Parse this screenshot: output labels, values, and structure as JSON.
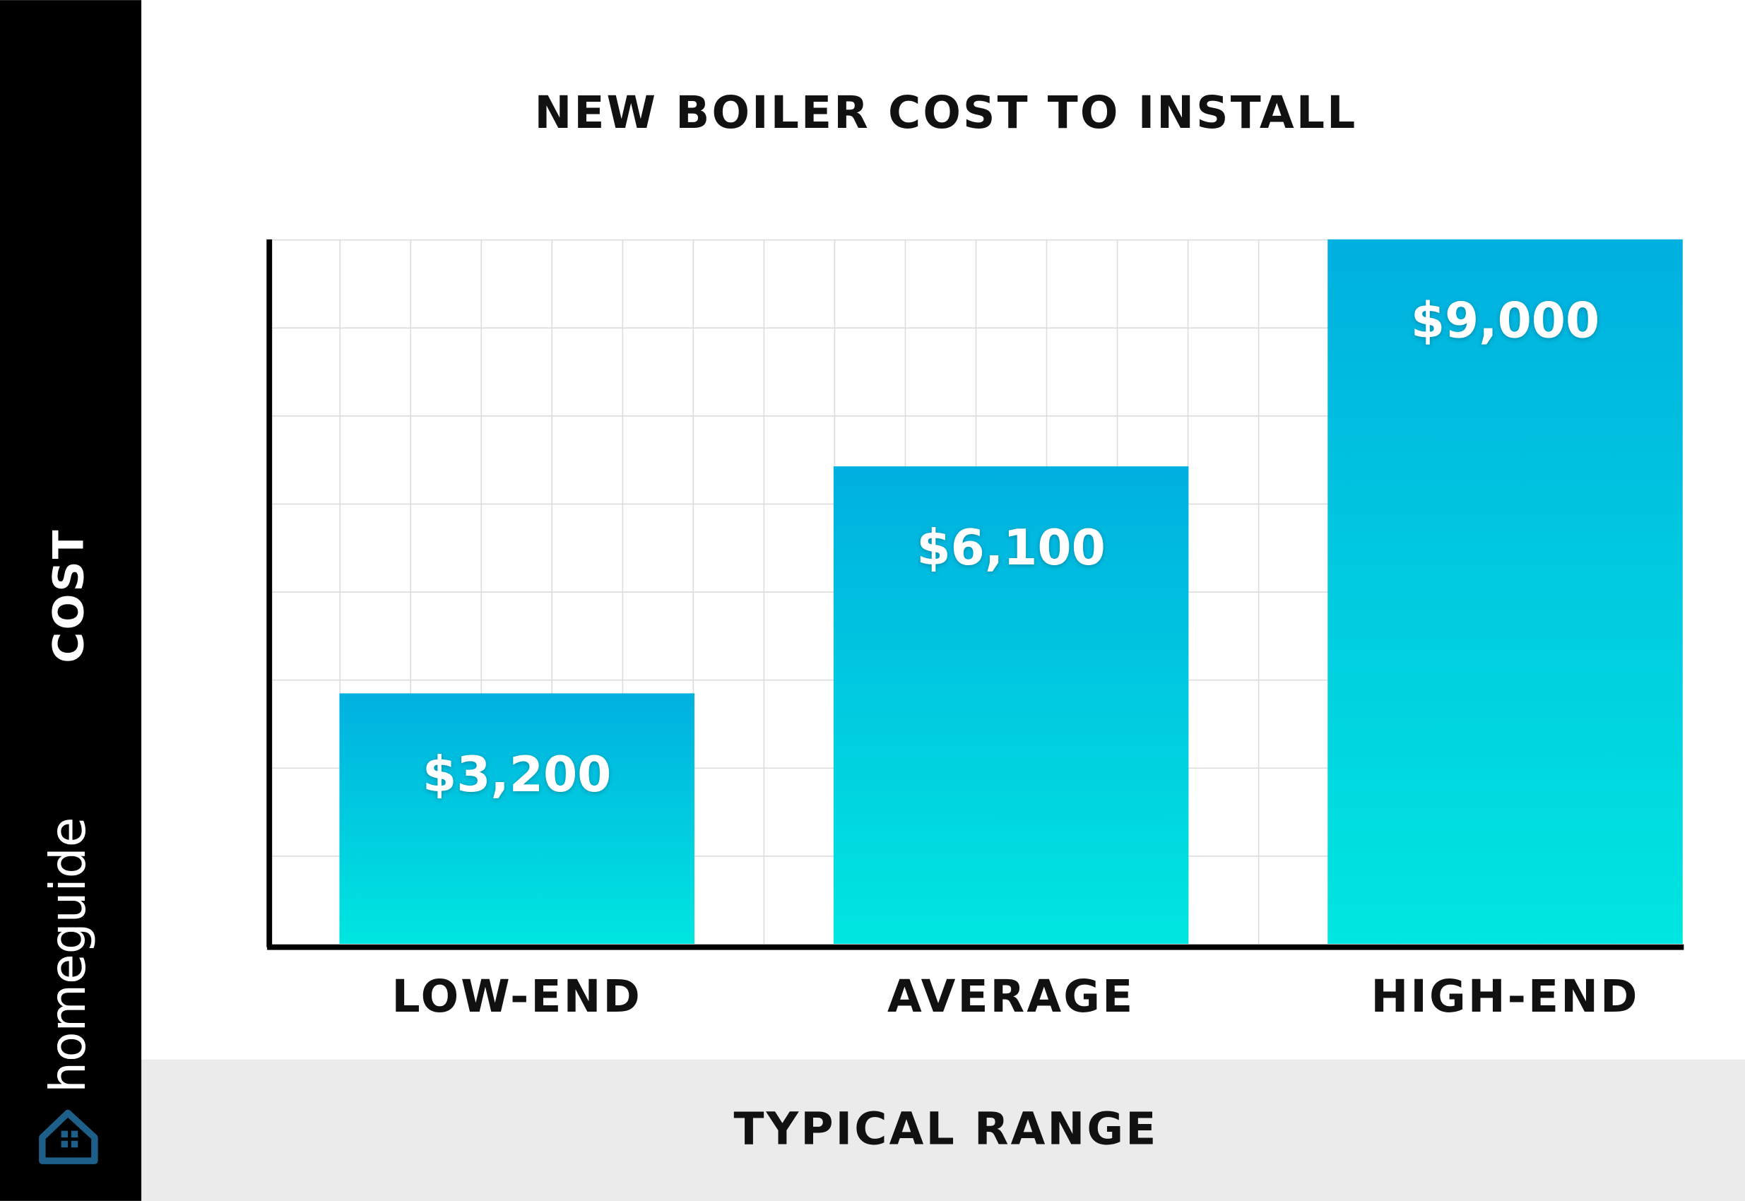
{
  "brand": "homeguide",
  "chart_data": {
    "type": "bar",
    "title": "NEW BOILER COST TO INSTALL",
    "x_label": "TYPICAL RANGE",
    "y_label": "COST",
    "categories": [
      "LOW-END",
      "AVERAGE",
      "HIGH-END"
    ],
    "values": [
      3200,
      6100,
      9000
    ],
    "value_labels": [
      "$3,200",
      "$6,100",
      "$9,000"
    ],
    "color": "#00c4e2",
    "ylim": [
      0,
      9000
    ]
  }
}
